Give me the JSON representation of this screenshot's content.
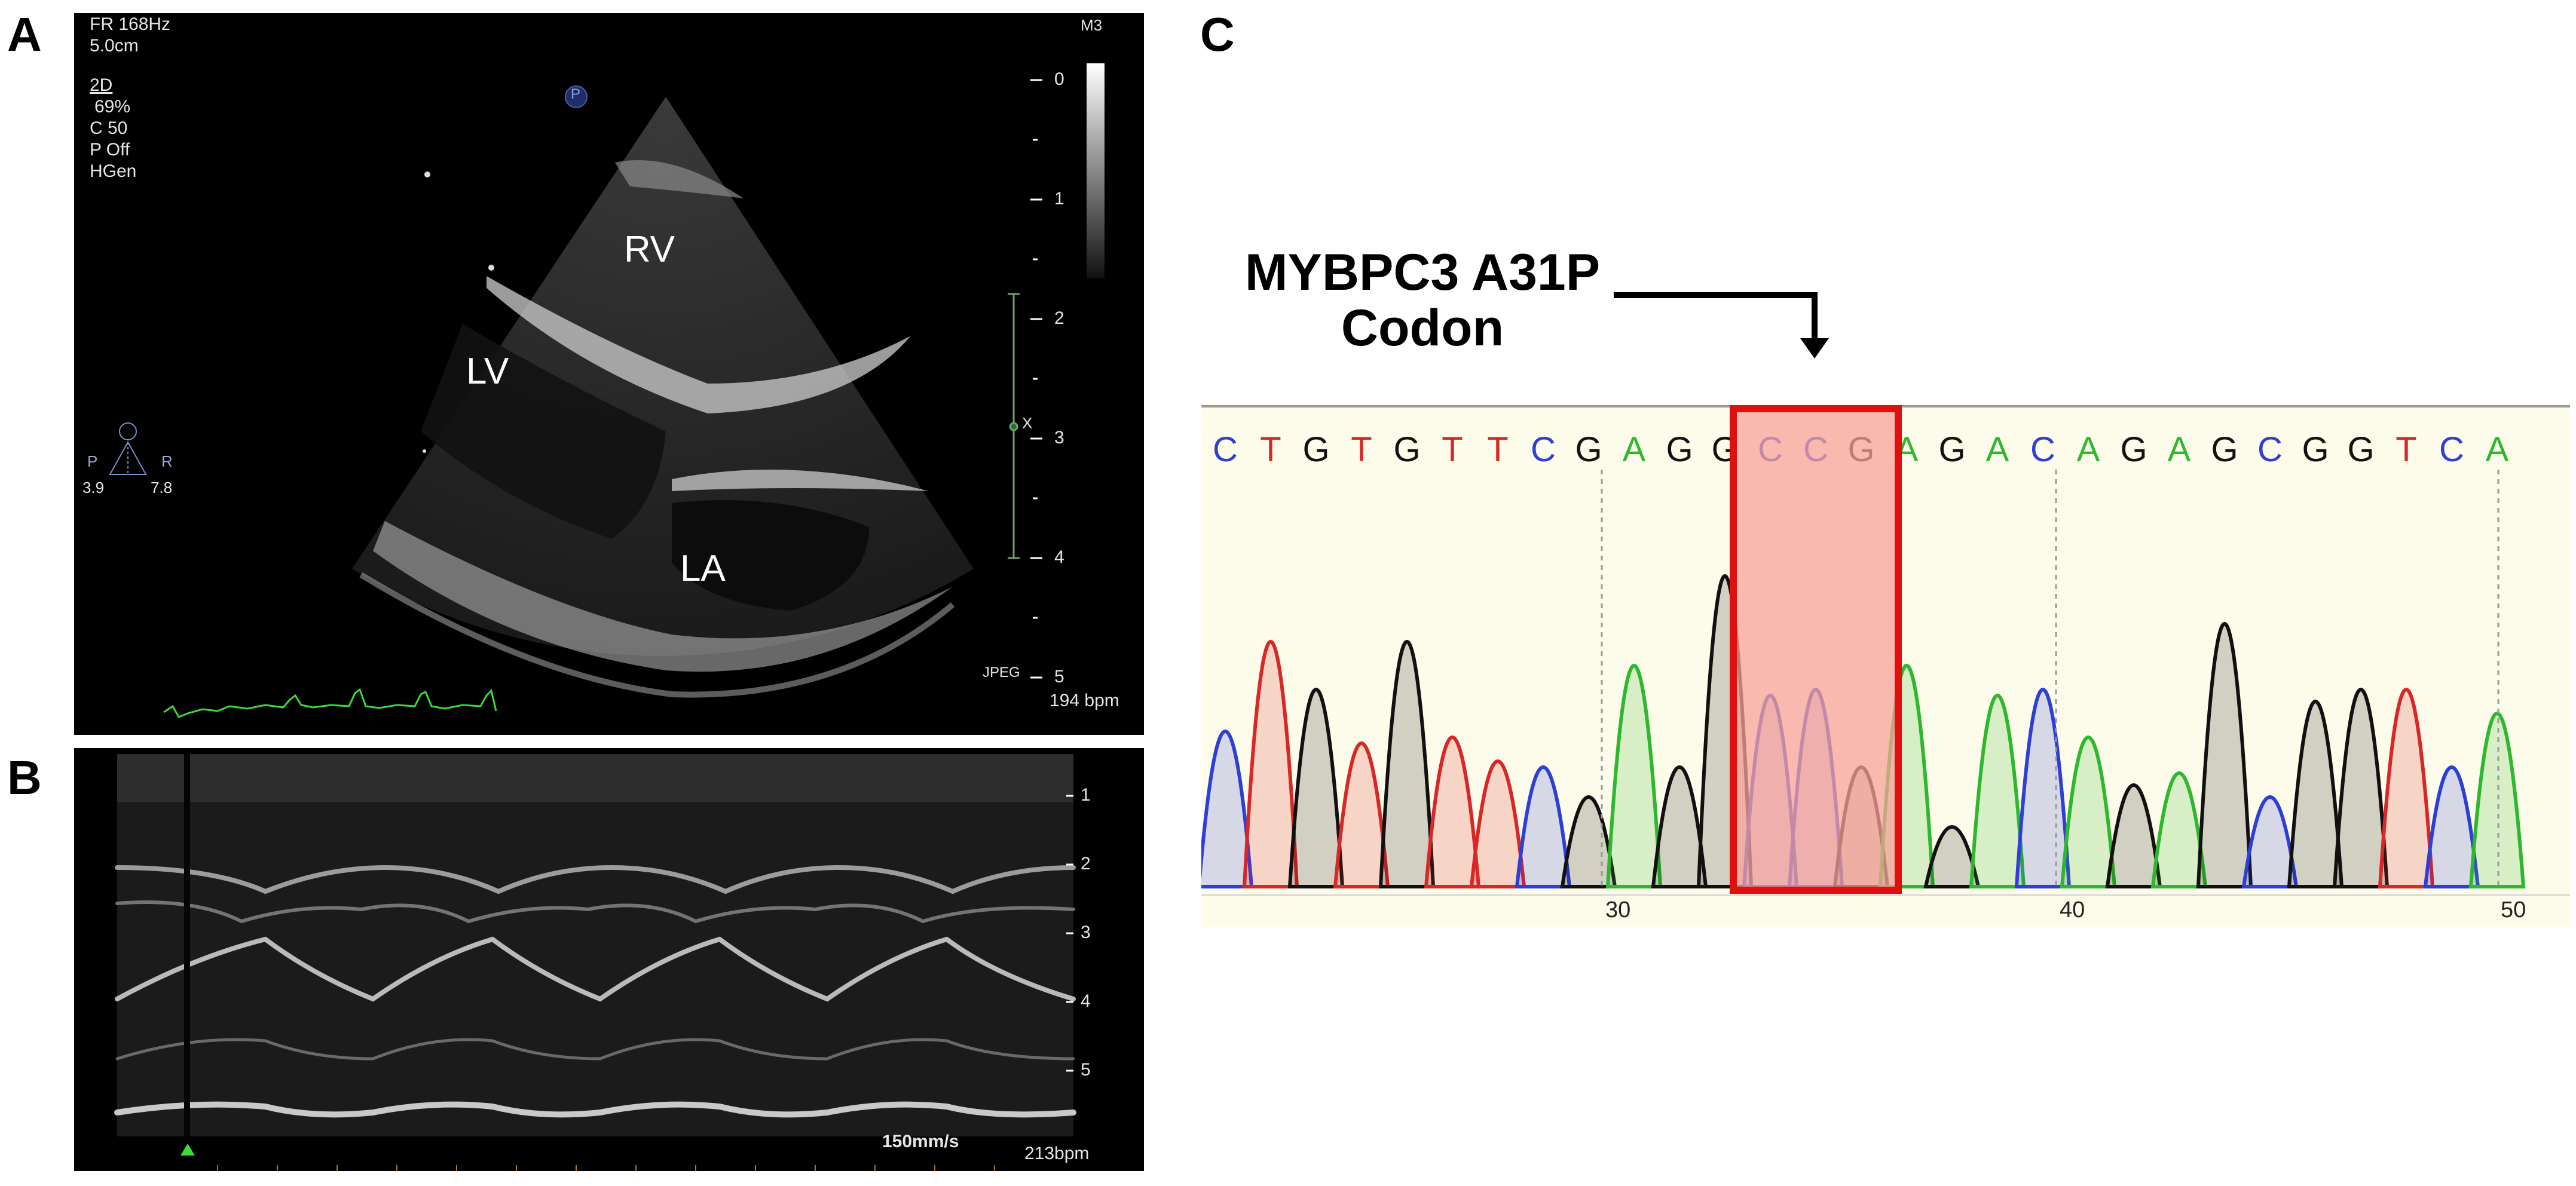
{
  "panels": {
    "a": "A",
    "b": "B",
    "c": "C"
  },
  "echo": {
    "frame_rate": "FR 168Hz",
    "depth": "5.0cm",
    "mode": "2D",
    "gain": "69%",
    "compression": "C 50",
    "persistence": "P Off",
    "frequency": "HGen",
    "probe_marker": "P",
    "preset": "M3",
    "focus_left": "3.9",
    "focus_right": "7.8",
    "orient_left": "P",
    "orient_right": "R",
    "format": "JPEG",
    "heart_rate": "194 bpm",
    "depth_scale": [
      "0",
      "1",
      "2",
      "3",
      "4",
      "5"
    ],
    "focus_mark": "X",
    "chambers": {
      "rv": "RV",
      "lv": "LV",
      "la": "LA"
    }
  },
  "mmode": {
    "sweep_speed": "150mm/s",
    "heart_rate": "213bpm",
    "depth_scale": [
      "1",
      "2",
      "3",
      "4",
      "5"
    ]
  },
  "sequence": {
    "caption_line1": "MYBPC3 A31P",
    "caption_line2": "Codon",
    "bases": [
      "C",
      "T",
      "G",
      "T",
      "G",
      "T",
      "T",
      "C",
      "G",
      "A",
      "G",
      "G",
      "C",
      "C",
      "G",
      "A",
      "G",
      "A",
      "C",
      "A",
      "G",
      "A",
      "G",
      "C",
      "G",
      "G",
      "T",
      "C",
      "A"
    ],
    "positions": [
      "30",
      "40",
      "50"
    ],
    "highlight": "GCC",
    "colors": {
      "A": "#2db82d",
      "C": "#2e3fd6",
      "G": "#111111",
      "T": "#d92626",
      "highlight_fill": "#f7a39a",
      "highlight_border": "#e01010"
    }
  }
}
